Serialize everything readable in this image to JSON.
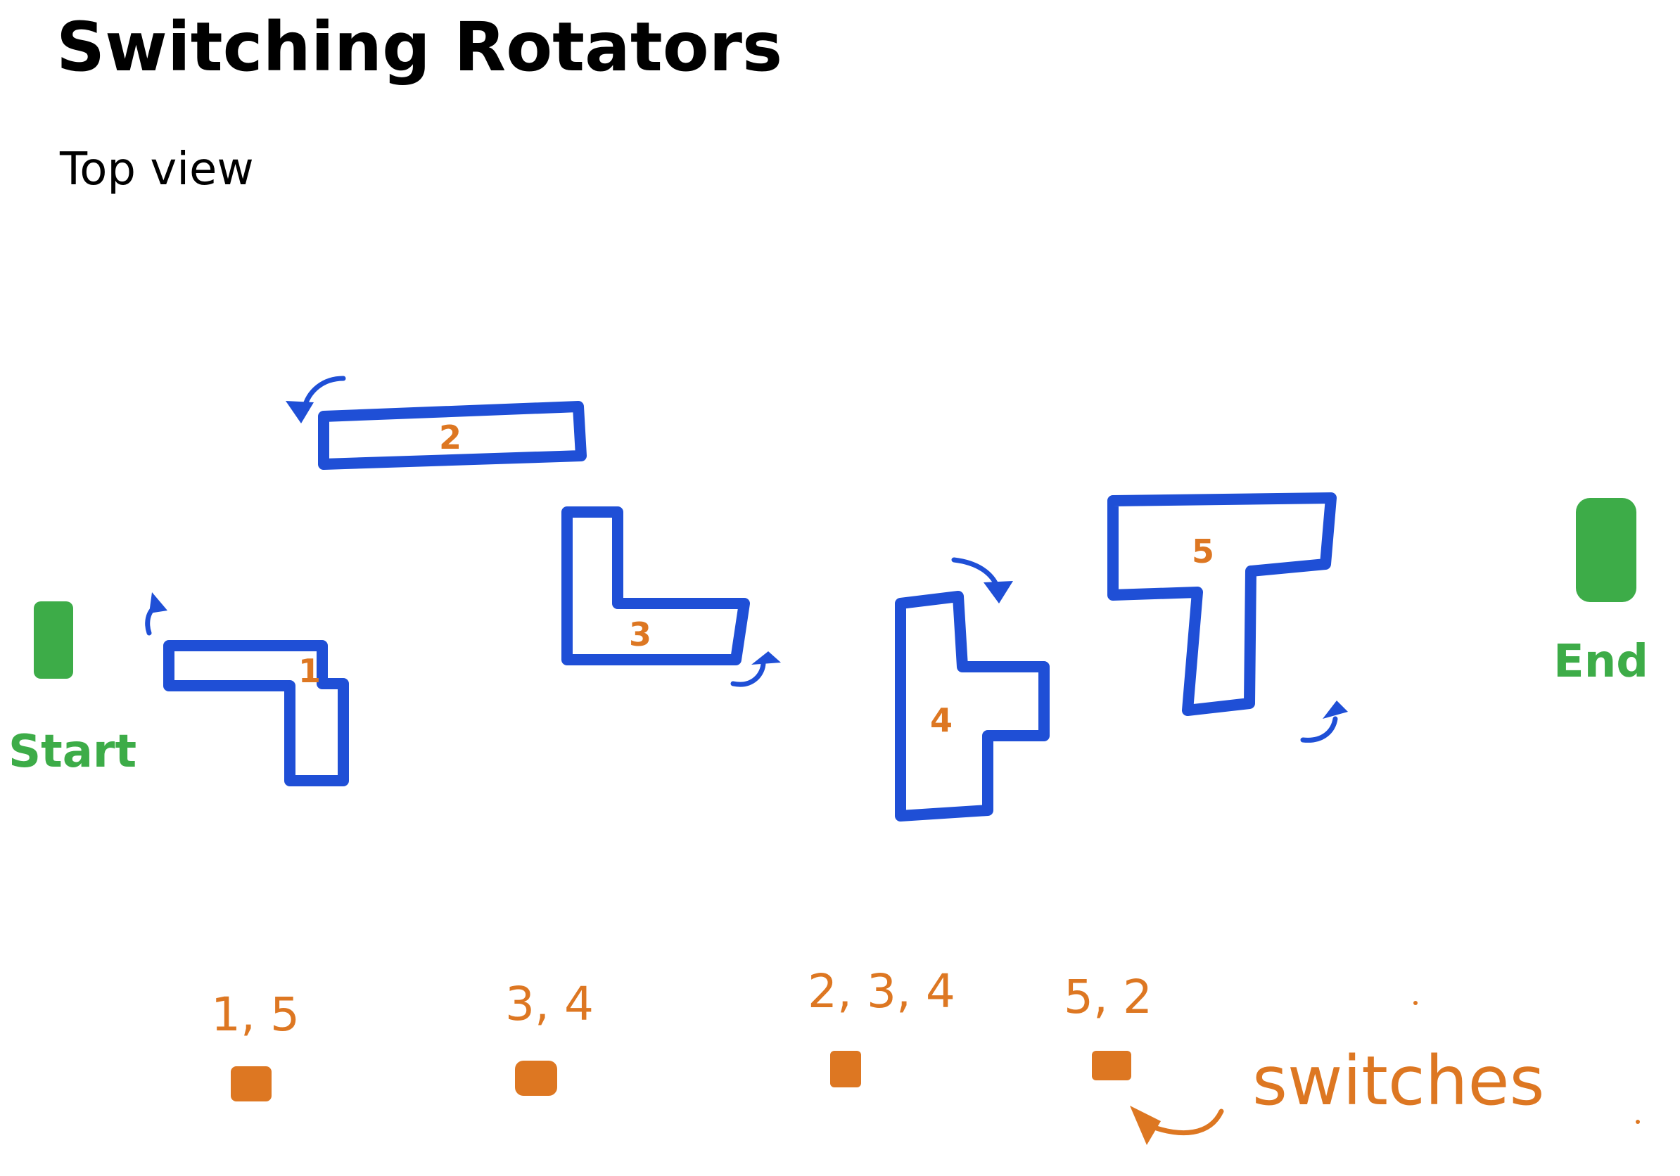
{
  "title": "Switching Rotators",
  "subtitle": "Top view",
  "start_label": "Start",
  "end_label": "End",
  "pieces": [
    {
      "label": "1",
      "name": "rotator-1"
    },
    {
      "label": "2",
      "name": "rotator-2"
    },
    {
      "label": "3",
      "name": "rotator-3"
    },
    {
      "label": "4",
      "name": "rotator-4"
    },
    {
      "label": "5",
      "name": "rotator-5"
    }
  ],
  "switches": [
    {
      "label": "1, 5"
    },
    {
      "label": "3, 4"
    },
    {
      "label": "2, 3, 4"
    },
    {
      "label": "5, 2"
    }
  ],
  "switches_caption": "switches",
  "colors": {
    "piece": "#1f4fd6",
    "number": "#dd7722",
    "start_end": "#3dac48",
    "switch": "#dd7722"
  }
}
